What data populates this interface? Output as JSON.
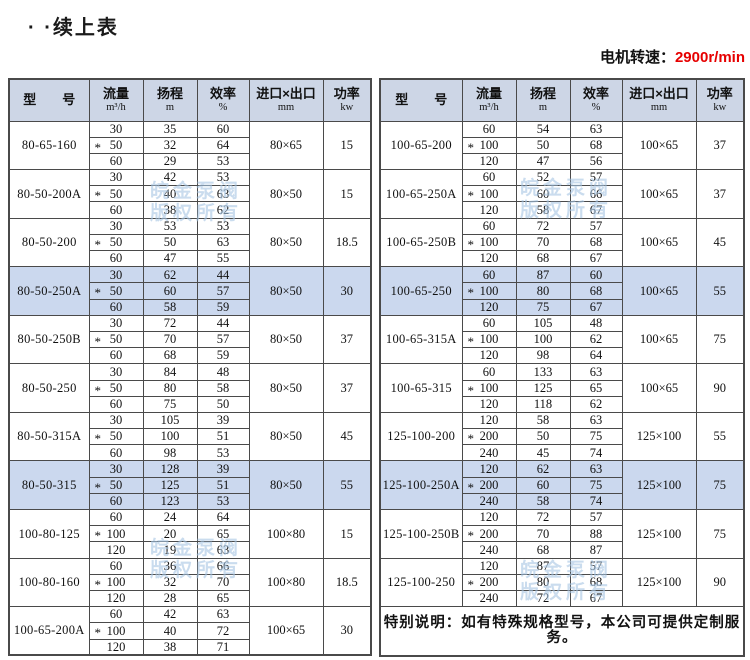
{
  "page": {
    "title": "· ·续上表",
    "motor_speed_label": "电机转速：",
    "motor_speed_value": "2900r/min"
  },
  "watermark": {
    "line1": "皖金泵阀",
    "line2": "版权所有"
  },
  "table_headers": {
    "model": "型　　号",
    "flow": "流量",
    "flow_unit": "m³/h",
    "head": "扬程",
    "head_unit": "m",
    "efficiency": "效率",
    "efficiency_unit": "%",
    "ports": "进口×出口",
    "ports_unit": "mm",
    "power": "功率",
    "power_unit": "kw"
  },
  "left_table": {
    "rows": [
      {
        "model": "80-65-160",
        "highlighted": false,
        "ports": "80×65",
        "power": "15",
        "sub": [
          {
            "flow": "30",
            "star": false,
            "head": "35",
            "eff": "60"
          },
          {
            "flow": "50",
            "star": true,
            "head": "32",
            "eff": "64"
          },
          {
            "flow": "60",
            "star": false,
            "head": "29",
            "eff": "53"
          }
        ]
      },
      {
        "model": "80-50-200A",
        "highlighted": false,
        "ports": "80×50",
        "power": "15",
        "sub": [
          {
            "flow": "30",
            "star": false,
            "head": "42",
            "eff": "53"
          },
          {
            "flow": "50",
            "star": true,
            "head": "40",
            "eff": "63"
          },
          {
            "flow": "60",
            "star": false,
            "head": "38",
            "eff": "62"
          }
        ]
      },
      {
        "model": "80-50-200",
        "highlighted": false,
        "ports": "80×50",
        "power": "18.5",
        "sub": [
          {
            "flow": "30",
            "star": false,
            "head": "53",
            "eff": "53"
          },
          {
            "flow": "50",
            "star": true,
            "head": "50",
            "eff": "63"
          },
          {
            "flow": "60",
            "star": false,
            "head": "47",
            "eff": "55"
          }
        ]
      },
      {
        "model": "80-50-250A",
        "highlighted": true,
        "ports": "80×50",
        "power": "30",
        "sub": [
          {
            "flow": "30",
            "star": false,
            "head": "62",
            "eff": "44"
          },
          {
            "flow": "50",
            "star": true,
            "head": "60",
            "eff": "57"
          },
          {
            "flow": "60",
            "star": false,
            "head": "58",
            "eff": "59"
          }
        ]
      },
      {
        "model": "80-50-250B",
        "highlighted": false,
        "ports": "80×50",
        "power": "37",
        "sub": [
          {
            "flow": "30",
            "star": false,
            "head": "72",
            "eff": "44"
          },
          {
            "flow": "50",
            "star": true,
            "head": "70",
            "eff": "57"
          },
          {
            "flow": "60",
            "star": false,
            "head": "68",
            "eff": "59"
          }
        ]
      },
      {
        "model": "80-50-250",
        "highlighted": false,
        "ports": "80×50",
        "power": "37",
        "sub": [
          {
            "flow": "30",
            "star": false,
            "head": "84",
            "eff": "48"
          },
          {
            "flow": "50",
            "star": true,
            "head": "80",
            "eff": "58"
          },
          {
            "flow": "60",
            "star": false,
            "head": "75",
            "eff": "50"
          }
        ]
      },
      {
        "model": "80-50-315A",
        "highlighted": false,
        "ports": "80×50",
        "power": "45",
        "sub": [
          {
            "flow": "30",
            "star": false,
            "head": "105",
            "eff": "39"
          },
          {
            "flow": "50",
            "star": true,
            "head": "100",
            "eff": "51"
          },
          {
            "flow": "60",
            "star": false,
            "head": "98",
            "eff": "53"
          }
        ]
      },
      {
        "model": "80-50-315",
        "highlighted": true,
        "ports": "80×50",
        "power": "55",
        "sub": [
          {
            "flow": "30",
            "star": false,
            "head": "128",
            "eff": "39"
          },
          {
            "flow": "50",
            "star": true,
            "head": "125",
            "eff": "51"
          },
          {
            "flow": "60",
            "star": false,
            "head": "123",
            "eff": "53"
          }
        ]
      },
      {
        "model": "100-80-125",
        "highlighted": false,
        "ports": "100×80",
        "power": "15",
        "sub": [
          {
            "flow": "60",
            "star": false,
            "head": "24",
            "eff": "64"
          },
          {
            "flow": "100",
            "star": true,
            "head": "20",
            "eff": "65"
          },
          {
            "flow": "120",
            "star": false,
            "head": "19",
            "eff": "63"
          }
        ]
      },
      {
        "model": "100-80-160",
        "highlighted": false,
        "ports": "100×80",
        "power": "18.5",
        "sub": [
          {
            "flow": "60",
            "star": false,
            "head": "36",
            "eff": "66"
          },
          {
            "flow": "100",
            "star": true,
            "head": "32",
            "eff": "70"
          },
          {
            "flow": "120",
            "star": false,
            "head": "28",
            "eff": "65"
          }
        ]
      },
      {
        "model": "100-65-200A",
        "highlighted": false,
        "ports": "100×65",
        "power": "30",
        "sub": [
          {
            "flow": "60",
            "star": false,
            "head": "42",
            "eff": "63"
          },
          {
            "flow": "100",
            "star": true,
            "head": "40",
            "eff": "72"
          },
          {
            "flow": "120",
            "star": false,
            "head": "38",
            "eff": "71"
          }
        ]
      }
    ]
  },
  "right_table": {
    "rows": [
      {
        "model": "100-65-200",
        "highlighted": false,
        "ports": "100×65",
        "power": "37",
        "sub": [
          {
            "flow": "60",
            "star": false,
            "head": "54",
            "eff": "63"
          },
          {
            "flow": "100",
            "star": true,
            "head": "50",
            "eff": "68"
          },
          {
            "flow": "120",
            "star": false,
            "head": "47",
            "eff": "56"
          }
        ]
      },
      {
        "model": "100-65-250A",
        "highlighted": false,
        "ports": "100×65",
        "power": "37",
        "sub": [
          {
            "flow": "60",
            "star": false,
            "head": "52",
            "eff": "57"
          },
          {
            "flow": "100",
            "star": true,
            "head": "60",
            "eff": "66"
          },
          {
            "flow": "120",
            "star": false,
            "head": "58",
            "eff": "67"
          }
        ]
      },
      {
        "model": "100-65-250B",
        "highlighted": false,
        "ports": "100×65",
        "power": "45",
        "sub": [
          {
            "flow": "60",
            "star": false,
            "head": "72",
            "eff": "57"
          },
          {
            "flow": "100",
            "star": true,
            "head": "70",
            "eff": "68"
          },
          {
            "flow": "120",
            "star": false,
            "head": "68",
            "eff": "67"
          }
        ]
      },
      {
        "model": "100-65-250",
        "highlighted": true,
        "ports": "100×65",
        "power": "55",
        "sub": [
          {
            "flow": "60",
            "star": false,
            "head": "87",
            "eff": "60"
          },
          {
            "flow": "100",
            "star": true,
            "head": "80",
            "eff": "68"
          },
          {
            "flow": "120",
            "star": false,
            "head": "75",
            "eff": "67"
          }
        ]
      },
      {
        "model": "100-65-315A",
        "highlighted": false,
        "ports": "100×65",
        "power": "75",
        "sub": [
          {
            "flow": "60",
            "star": false,
            "head": "105",
            "eff": "48"
          },
          {
            "flow": "100",
            "star": true,
            "head": "100",
            "eff": "62"
          },
          {
            "flow": "120",
            "star": false,
            "head": "98",
            "eff": "64"
          }
        ]
      },
      {
        "model": "100-65-315",
        "highlighted": false,
        "ports": "100×65",
        "power": "90",
        "sub": [
          {
            "flow": "60",
            "star": false,
            "head": "133",
            "eff": "63"
          },
          {
            "flow": "100",
            "star": true,
            "head": "125",
            "eff": "65"
          },
          {
            "flow": "120",
            "star": false,
            "head": "118",
            "eff": "62"
          }
        ]
      },
      {
        "model": "125-100-200",
        "highlighted": false,
        "ports": "125×100",
        "power": "55",
        "sub": [
          {
            "flow": "120",
            "star": false,
            "head": "58",
            "eff": "63"
          },
          {
            "flow": "200",
            "star": true,
            "head": "50",
            "eff": "75"
          },
          {
            "flow": "240",
            "star": false,
            "head": "45",
            "eff": "74"
          }
        ]
      },
      {
        "model": "125-100-250A",
        "highlighted": true,
        "ports": "125×100",
        "power": "75",
        "sub": [
          {
            "flow": "120",
            "star": false,
            "head": "62",
            "eff": "63"
          },
          {
            "flow": "200",
            "star": true,
            "head": "60",
            "eff": "75"
          },
          {
            "flow": "240",
            "star": false,
            "head": "58",
            "eff": "74"
          }
        ]
      },
      {
        "model": "125-100-250B",
        "highlighted": false,
        "ports": "125×100",
        "power": "75",
        "sub": [
          {
            "flow": "120",
            "star": false,
            "head": "72",
            "eff": "57"
          },
          {
            "flow": "200",
            "star": true,
            "head": "70",
            "eff": "88"
          },
          {
            "flow": "240",
            "star": false,
            "head": "68",
            "eff": "87"
          }
        ]
      },
      {
        "model": "125-100-250",
        "highlighted": false,
        "ports": "125×100",
        "power": "90",
        "sub": [
          {
            "flow": "120",
            "star": false,
            "head": "87",
            "eff": "57"
          },
          {
            "flow": "200",
            "star": true,
            "head": "80",
            "eff": "68"
          },
          {
            "flow": "240",
            "star": false,
            "head": "72",
            "eff": "67"
          }
        ]
      }
    ],
    "note": "特别说明：如有特殊规格型号，本公司可提供定制服务。"
  },
  "colors": {
    "header_bg": "#cdd6e6",
    "highlight_bg": "#cbd8ee",
    "accent_red": "#e60000",
    "watermark": "#a7c6e4",
    "border": "#4a4a4a"
  }
}
